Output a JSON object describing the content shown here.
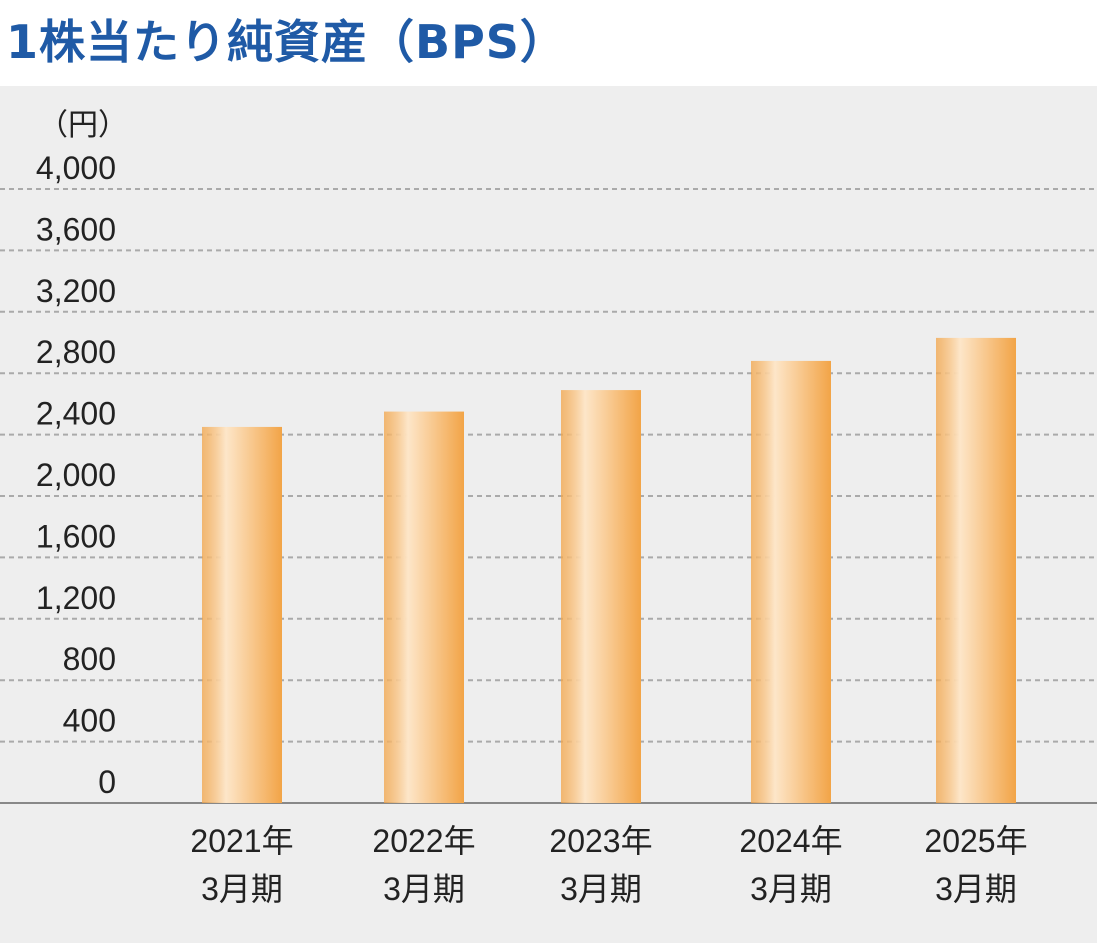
{
  "title": "1株当たり純資産（BPS）",
  "colors": {
    "title": "#1f5aa6",
    "background": "#eeeeee",
    "bar_light": "#fde6c9",
    "bar_dark": "#f2a447",
    "grid": "#aaaaaa",
    "axis": "#888888"
  },
  "chart_data": {
    "type": "bar",
    "unit_label": "（円）",
    "categories": [
      [
        "2021年",
        "3月期"
      ],
      [
        "2022年",
        "3月期"
      ],
      [
        "2023年",
        "3月期"
      ],
      [
        "2024年",
        "3月期"
      ],
      [
        "2025年",
        "3月期"
      ]
    ],
    "values": [
      2450,
      2550,
      2690,
      2880,
      3030
    ],
    "ylim": [
      0,
      4000
    ],
    "yticks": [
      0,
      400,
      800,
      1200,
      1600,
      2000,
      2400,
      2800,
      3200,
      3600,
      4000
    ],
    "ytick_labels": [
      "0",
      "400",
      "800",
      "1,200",
      "1,600",
      "2,000",
      "2,400",
      "2,800",
      "3,200",
      "3,600",
      "4,000"
    ],
    "grid": "dashed horizontal"
  }
}
